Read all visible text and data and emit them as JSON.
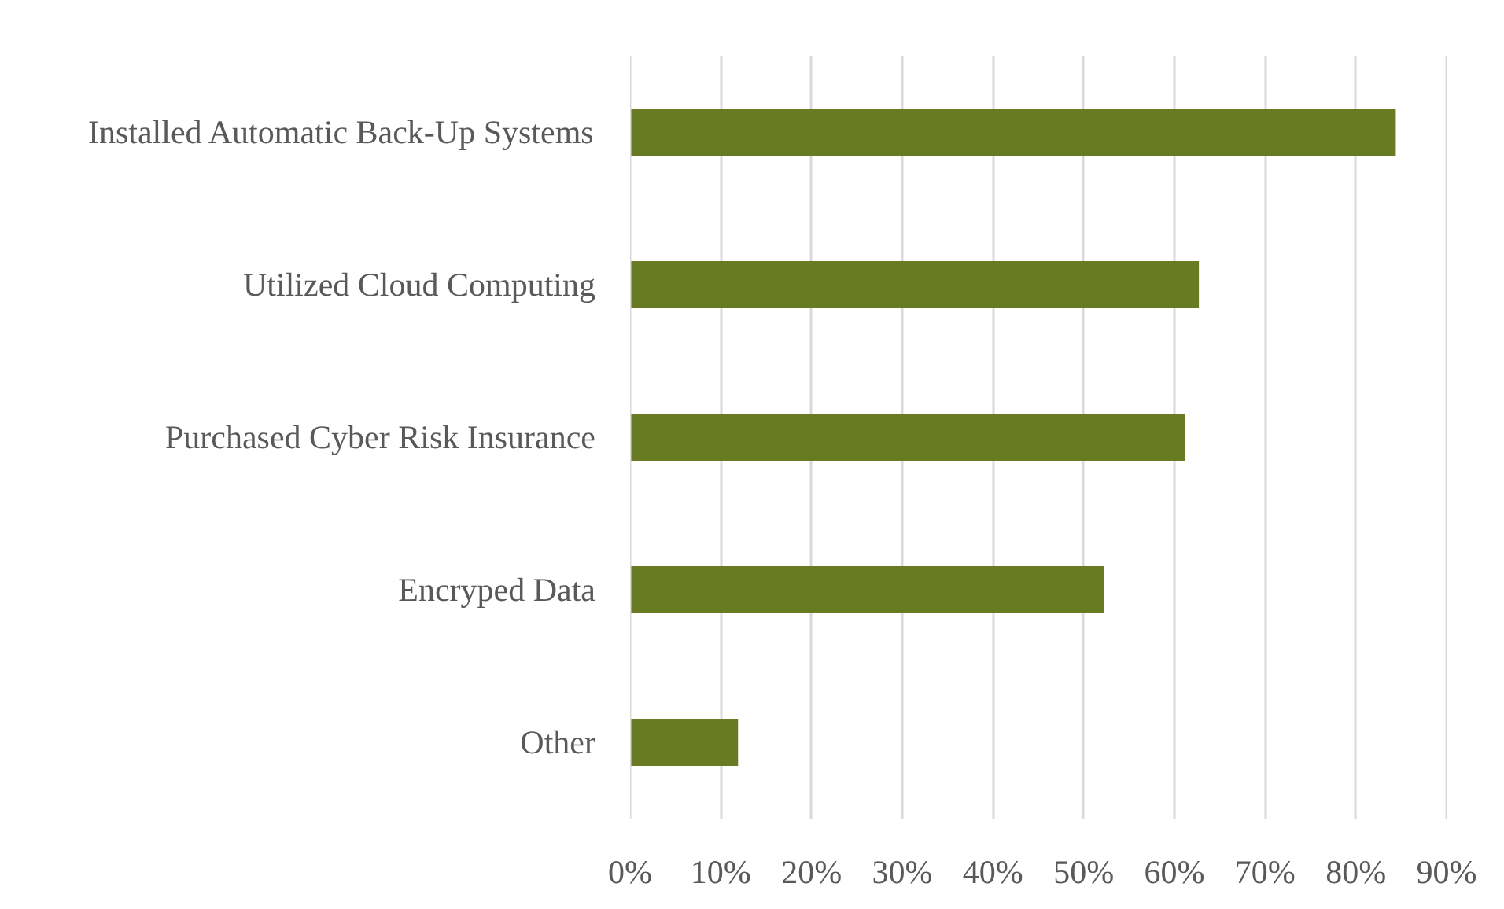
{
  "chart_data": {
    "type": "bar",
    "orientation": "horizontal",
    "categories": [
      "Installed Automatic Back-Up Systems",
      "Utilized Cloud Computing",
      "Purchased Cyber Risk Insurance",
      "Encryped Data",
      "Other"
    ],
    "values": [
      84.4,
      62.7,
      61.2,
      52.2,
      11.9
    ],
    "color": "#687a22",
    "xlim": [
      0,
      90
    ],
    "xticks": [
      {
        "value": 0,
        "label": "0%"
      },
      {
        "value": 10,
        "label": "10%"
      },
      {
        "value": 20,
        "label": "20%"
      },
      {
        "value": 30,
        "label": "30%"
      },
      {
        "value": 40,
        "label": "40%"
      },
      {
        "value": 50,
        "label": "50%"
      },
      {
        "value": 60,
        "label": "60%"
      },
      {
        "value": 70,
        "label": "70%"
      },
      {
        "value": 80,
        "label": "80%"
      },
      {
        "value": 90,
        "label": "90%"
      }
    ],
    "grid": "x"
  }
}
